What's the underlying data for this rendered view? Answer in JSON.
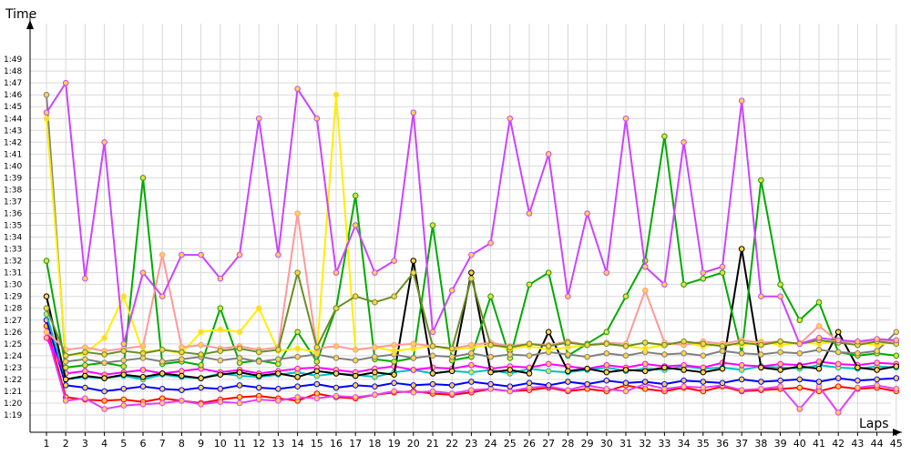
{
  "chart_data": {
    "type": "line",
    "xlabel": "Laps",
    "ylabel": "Time",
    "x": [
      1,
      2,
      3,
      4,
      5,
      6,
      7,
      8,
      9,
      10,
      11,
      12,
      13,
      14,
      15,
      16,
      17,
      18,
      19,
      20,
      21,
      22,
      23,
      24,
      25,
      26,
      27,
      28,
      29,
      30,
      31,
      32,
      33,
      34,
      35,
      36,
      37,
      38,
      39,
      40,
      41,
      42,
      43,
      44,
      45
    ],
    "xtick_labels": [
      "1",
      "2",
      "3",
      "4",
      "5",
      "6",
      "7",
      "8",
      "9",
      "10",
      "11",
      "12",
      "13",
      "14",
      "15",
      "16",
      "17",
      "18",
      "19",
      "20",
      "21",
      "22",
      "23",
      "24",
      "25",
      "26",
      "27",
      "28",
      "29",
      "30",
      "31",
      "32",
      "33",
      "34",
      "35",
      "36",
      "37",
      "38",
      "39",
      "40",
      "41",
      "42",
      "43",
      "44",
      "45"
    ],
    "ytick_labels": [
      "1:19",
      "1:20",
      "1:21",
      "1:22",
      "1:23",
      "1:24",
      "1:25",
      "1:26",
      "1:27",
      "1:28",
      "1:29",
      "1:30",
      "1:31",
      "1:32",
      "1:33",
      "1:34",
      "1:35",
      "1:36",
      "1:37",
      "1:38",
      "1:39",
      "1:40",
      "1:41",
      "1:42",
      "1:43",
      "1:44",
      "1:45",
      "1:46",
      "1:47",
      "1:48",
      "1:49"
    ],
    "ylim_seconds": [
      78,
      110
    ],
    "grid": true,
    "legend": "none",
    "series": [
      {
        "color": "#ff0000",
        "values": [
          86.5,
          80.5,
          80.3,
          80.2,
          80.3,
          80.1,
          80.4,
          80.2,
          80.0,
          80.3,
          80.5,
          80.6,
          80.4,
          80.2,
          80.8,
          80.5,
          80.4,
          80.7,
          80.9,
          81.0,
          80.8,
          80.7,
          80.9,
          81.2,
          81.0,
          81.1,
          81.3,
          81.0,
          81.2,
          81.0,
          81.5,
          81.2,
          81.0,
          81.3,
          81.0,
          81.4,
          81.0,
          81.1,
          81.2,
          81.3,
          81.0,
          81.4,
          81.2,
          81.3,
          81.0
        ]
      },
      {
        "color": "#e040fb",
        "values": [
          86.0,
          80.2,
          80.4,
          79.5,
          79.8,
          79.9,
          80.0,
          80.2,
          79.9,
          80.1,
          80.0,
          80.3,
          80.2,
          80.5,
          80.4,
          80.6,
          80.5,
          80.7,
          81.0,
          80.9,
          81.0,
          80.8,
          81.1,
          81.2,
          81.0,
          81.3,
          81.4,
          81.1,
          81.5,
          81.2,
          81.0,
          81.6,
          81.2,
          81.4,
          81.3,
          81.5,
          81.1,
          81.2,
          81.4,
          79.5,
          81.4,
          79.2,
          81.3,
          81.5,
          81.2
        ]
      },
      {
        "color": "#0000ff",
        "values": [
          87.0,
          81.5,
          81.3,
          81.0,
          81.2,
          81.4,
          81.2,
          81.1,
          81.3,
          81.2,
          81.5,
          81.3,
          81.2,
          81.4,
          81.6,
          81.3,
          81.5,
          81.4,
          81.7,
          81.5,
          81.6,
          81.5,
          81.8,
          81.6,
          81.4,
          81.7,
          81.5,
          81.8,
          81.6,
          81.9,
          81.7,
          81.8,
          81.6,
          81.9,
          81.8,
          81.7,
          82.0,
          81.8,
          81.9,
          82.0,
          81.8,
          82.1,
          81.9,
          82.0,
          82.1
        ]
      },
      {
        "color": "#00c0c0",
        "values": [
          87.5,
          82.0,
          82.2,
          82.1,
          82.3,
          82.0,
          82.4,
          82.2,
          82.1,
          82.5,
          82.3,
          82.2,
          82.4,
          82.6,
          82.3,
          82.5,
          82.4,
          82.2,
          82.6,
          82.8,
          82.5,
          82.7,
          82.6,
          82.8,
          82.5,
          82.9,
          82.7,
          82.6,
          82.8,
          83.0,
          82.7,
          82.9,
          82.8,
          83.1,
          82.9,
          83.0,
          82.8,
          83.1,
          83.0,
          82.9,
          83.2,
          83.0,
          82.9,
          83.1,
          83.0
        ]
      },
      {
        "color": "#ff00ff",
        "values": [
          85.5,
          82.5,
          82.7,
          82.4,
          82.6,
          82.8,
          82.5,
          82.7,
          82.9,
          82.6,
          82.8,
          82.5,
          82.7,
          82.9,
          83.0,
          82.8,
          82.6,
          82.9,
          83.1,
          82.8,
          83.0,
          82.9,
          83.2,
          82.9,
          83.1,
          83.0,
          83.3,
          83.1,
          82.9,
          83.2,
          83.0,
          83.3,
          83.1,
          83.2,
          83.0,
          83.4,
          83.2,
          83.1,
          83.3,
          83.2,
          83.5,
          83.3,
          83.2,
          83.4,
          83.3
        ]
      },
      {
        "color": "#000000",
        "values": [
          89.0,
          82.0,
          82.3,
          82.1,
          82.4,
          82.2,
          82.5,
          82.3,
          82.1,
          82.4,
          82.6,
          82.3,
          82.5,
          82.2,
          82.7,
          82.5,
          82.3,
          82.6,
          82.4,
          92.0,
          82.5,
          82.7,
          91.0,
          82.6,
          82.8,
          82.5,
          86.0,
          82.7,
          82.9,
          82.6,
          82.8,
          82.7,
          83.0,
          82.8,
          82.6,
          82.9,
          93.0,
          83.0,
          82.8,
          83.1,
          82.9,
          86.0,
          83.0,
          82.8,
          83.1
        ]
      },
      {
        "color": "#00aa00",
        "values": [
          92.0,
          83.0,
          83.2,
          83.4,
          83.1,
          99.0,
          83.3,
          83.5,
          83.2,
          88.0,
          83.4,
          83.6,
          83.3,
          86.0,
          83.5,
          88.0,
          97.5,
          83.7,
          83.5,
          83.8,
          95.0,
          83.6,
          83.9,
          89.0,
          83.8,
          90.0,
          91.0,
          84.0,
          85.0,
          86.0,
          89.0,
          92.0,
          102.5,
          90.0,
          90.5,
          91.0,
          84.2,
          98.8,
          90.0,
          87.0,
          88.5,
          84.3,
          84.0,
          84.2,
          84.0
        ]
      },
      {
        "color": "#808080",
        "values": [
          106.0,
          83.5,
          83.7,
          83.4,
          83.6,
          83.8,
          83.5,
          83.7,
          83.9,
          83.6,
          83.8,
          83.5,
          83.7,
          83.9,
          84.1,
          83.8,
          83.6,
          83.9,
          84.1,
          83.8,
          84.0,
          83.9,
          84.2,
          83.9,
          84.1,
          84.0,
          84.3,
          84.1,
          83.9,
          84.2,
          84.0,
          84.3,
          84.1,
          84.2,
          84.0,
          84.4,
          84.2,
          84.1,
          84.3,
          84.2,
          84.5,
          84.3,
          84.2,
          84.4,
          86.0
        ]
      },
      {
        "color": "#ffee00",
        "values": [
          104.0,
          84.0,
          84.2,
          85.5,
          89.0,
          84.3,
          84.5,
          84.2,
          86.0,
          86.2,
          86.0,
          88.0,
          84.4,
          84.6,
          84.3,
          106.0,
          84.5,
          84.7,
          84.4,
          84.6,
          84.8,
          84.5,
          84.7,
          84.9,
          84.6,
          84.8,
          84.5,
          84.7,
          84.9,
          85.0,
          84.8,
          84.6,
          84.9,
          85.1,
          84.8,
          85.0,
          84.9,
          85.2,
          84.9,
          85.1,
          85.0,
          85.3,
          85.1,
          84.9,
          85.2
        ]
      },
      {
        "color": "#ff9999",
        "values": [
          86.0,
          84.5,
          84.7,
          84.4,
          84.6,
          84.8,
          92.5,
          84.7,
          84.9,
          84.6,
          84.8,
          84.5,
          84.7,
          96.0,
          84.6,
          84.8,
          84.5,
          84.7,
          84.9,
          85.0,
          84.8,
          84.6,
          84.9,
          85.1,
          84.8,
          85.0,
          84.9,
          85.2,
          84.9,
          85.1,
          85.0,
          89.5,
          85.1,
          84.9,
          85.2,
          85.0,
          85.3,
          85.1,
          85.2,
          85.0,
          86.5,
          85.2,
          85.1,
          85.3,
          85.2
        ]
      },
      {
        "color": "#6b8e23",
        "values": [
          88.0,
          84.0,
          84.3,
          84.1,
          84.4,
          84.2,
          84.5,
          84.3,
          84.1,
          84.4,
          84.6,
          84.3,
          84.5,
          91.0,
          84.7,
          88.0,
          89.0,
          88.5,
          89.0,
          91.0,
          84.8,
          84.6,
          90.5,
          84.9,
          84.7,
          85.0,
          84.8,
          85.1,
          84.9,
          85.0,
          84.8,
          85.1,
          84.9,
          85.2,
          85.0,
          84.8,
          85.1,
          84.9,
          85.2,
          85.0,
          85.3,
          85.1,
          84.9,
          85.2,
          85.0
        ]
      },
      {
        "color": "#cc44ff",
        "values": [
          104.5,
          107.0,
          90.5,
          102.0,
          85.0,
          91.0,
          89.0,
          92.5,
          92.5,
          90.5,
          92.5,
          104.0,
          92.5,
          106.5,
          104.0,
          91.0,
          95.0,
          91.0,
          92.0,
          104.5,
          86.0,
          89.5,
          92.5,
          93.5,
          104.0,
          96.0,
          101.0,
          89.0,
          96.0,
          91.0,
          104.0,
          91.5,
          90.0,
          102.0,
          91.0,
          91.5,
          105.5,
          89.0,
          89.0,
          85.0,
          85.5,
          85.3,
          85.2,
          85.4,
          85.3
        ]
      }
    ]
  }
}
